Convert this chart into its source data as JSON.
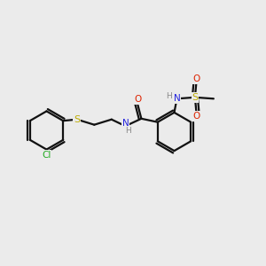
{
  "bg_color": "#ebebeb",
  "bond_color": "#111111",
  "bond_lw": 1.6,
  "cl_color": "#22aa22",
  "s_color": "#bbaa00",
  "n_color": "#2222dd",
  "o_color": "#dd2200",
  "h_color": "#888888",
  "figsize": [
    3.0,
    3.0
  ],
  "dpi": 100,
  "xlim": [
    0,
    10
  ],
  "ylim": [
    0,
    10
  ],
  "ring_r": 0.72,
  "ring_angles": [
    90,
    30,
    -30,
    -90,
    -150,
    150
  ]
}
